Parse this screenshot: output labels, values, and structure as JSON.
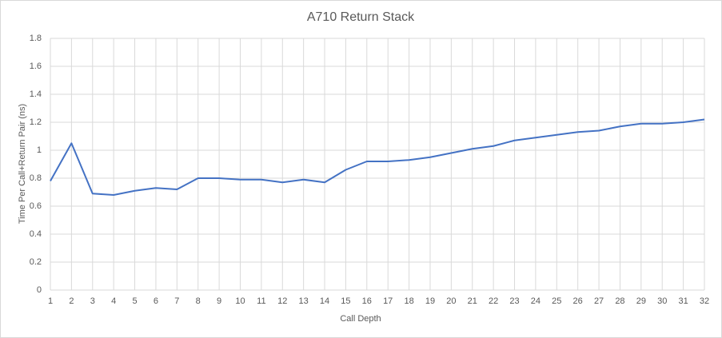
{
  "chart_data": {
    "type": "line",
    "title": "A710 Return Stack",
    "x_label": "Call Depth",
    "y_label": "Time Per Call+Return Pair (ns)",
    "x": [
      1,
      2,
      3,
      4,
      5,
      6,
      7,
      8,
      9,
      10,
      11,
      12,
      13,
      14,
      15,
      16,
      17,
      18,
      19,
      20,
      21,
      22,
      23,
      24,
      25,
      26,
      27,
      28,
      29,
      30,
      31,
      32
    ],
    "series": [
      {
        "name": "A710",
        "color": "#4472c4",
        "values": [
          0.78,
          1.05,
          0.69,
          0.68,
          0.71,
          0.73,
          0.72,
          0.8,
          0.8,
          0.79,
          0.79,
          0.77,
          0.79,
          0.77,
          0.86,
          0.92,
          0.92,
          0.93,
          0.95,
          0.98,
          1.01,
          1.03,
          1.07,
          1.09,
          1.11,
          1.13,
          1.14,
          1.17,
          1.19,
          1.19,
          1.2,
          1.22
        ]
      }
    ],
    "xlim": [
      1,
      32
    ],
    "xticks": [
      1,
      2,
      3,
      4,
      5,
      6,
      7,
      8,
      9,
      10,
      11,
      12,
      13,
      14,
      15,
      16,
      17,
      18,
      19,
      20,
      21,
      22,
      23,
      24,
      25,
      26,
      27,
      28,
      29,
      30,
      31,
      32
    ],
    "ylim": [
      0,
      1.8
    ],
    "yticks": [
      0,
      0.2,
      0.4,
      0.6,
      0.8,
      1,
      1.2,
      1.4,
      1.6,
      1.8
    ],
    "grid": true
  }
}
